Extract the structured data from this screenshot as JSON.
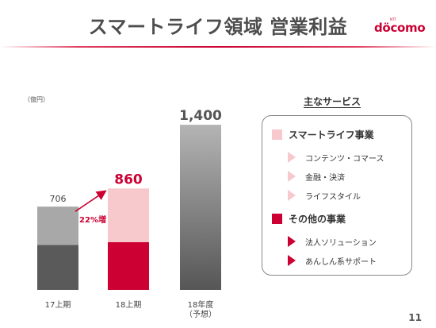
{
  "slide": {
    "title": "スマートライフ領域 営業利益",
    "page_number": "11"
  },
  "logo": {
    "ntt": "NTT",
    "brand": "döcomo",
    "color": "#cc0033"
  },
  "chart_data": {
    "type": "bar",
    "unit_label": "（億円）",
    "categories": [
      "17上期",
      "18上期",
      "18年度\n（予想）"
    ],
    "totals": [
      706,
      860,
      1400
    ],
    "total_labels": [
      "706",
      "860",
      "1,400"
    ],
    "growth_annotation": "22%増",
    "ylim": [
      0,
      1500
    ],
    "colors": {
      "smartlife": "#f7c8cc",
      "other": "#cc0033",
      "gray_top": "#a8a8a8",
      "gray_bottom": "#5a5a5a"
    },
    "stack_split_17": 0.54,
    "stack_split_18": 0.47
  },
  "services": {
    "heading": "主なサービス",
    "groups": [
      {
        "name": "スマートライフ事業",
        "color": "#f7c8cc",
        "items": [
          "コンテンツ・コマース",
          "金融・決済",
          "ライフスタイル"
        ]
      },
      {
        "name": "その他の事業",
        "color": "#cc0033",
        "items": [
          "法人ソリューション",
          "あんしん系サポート"
        ]
      }
    ]
  }
}
